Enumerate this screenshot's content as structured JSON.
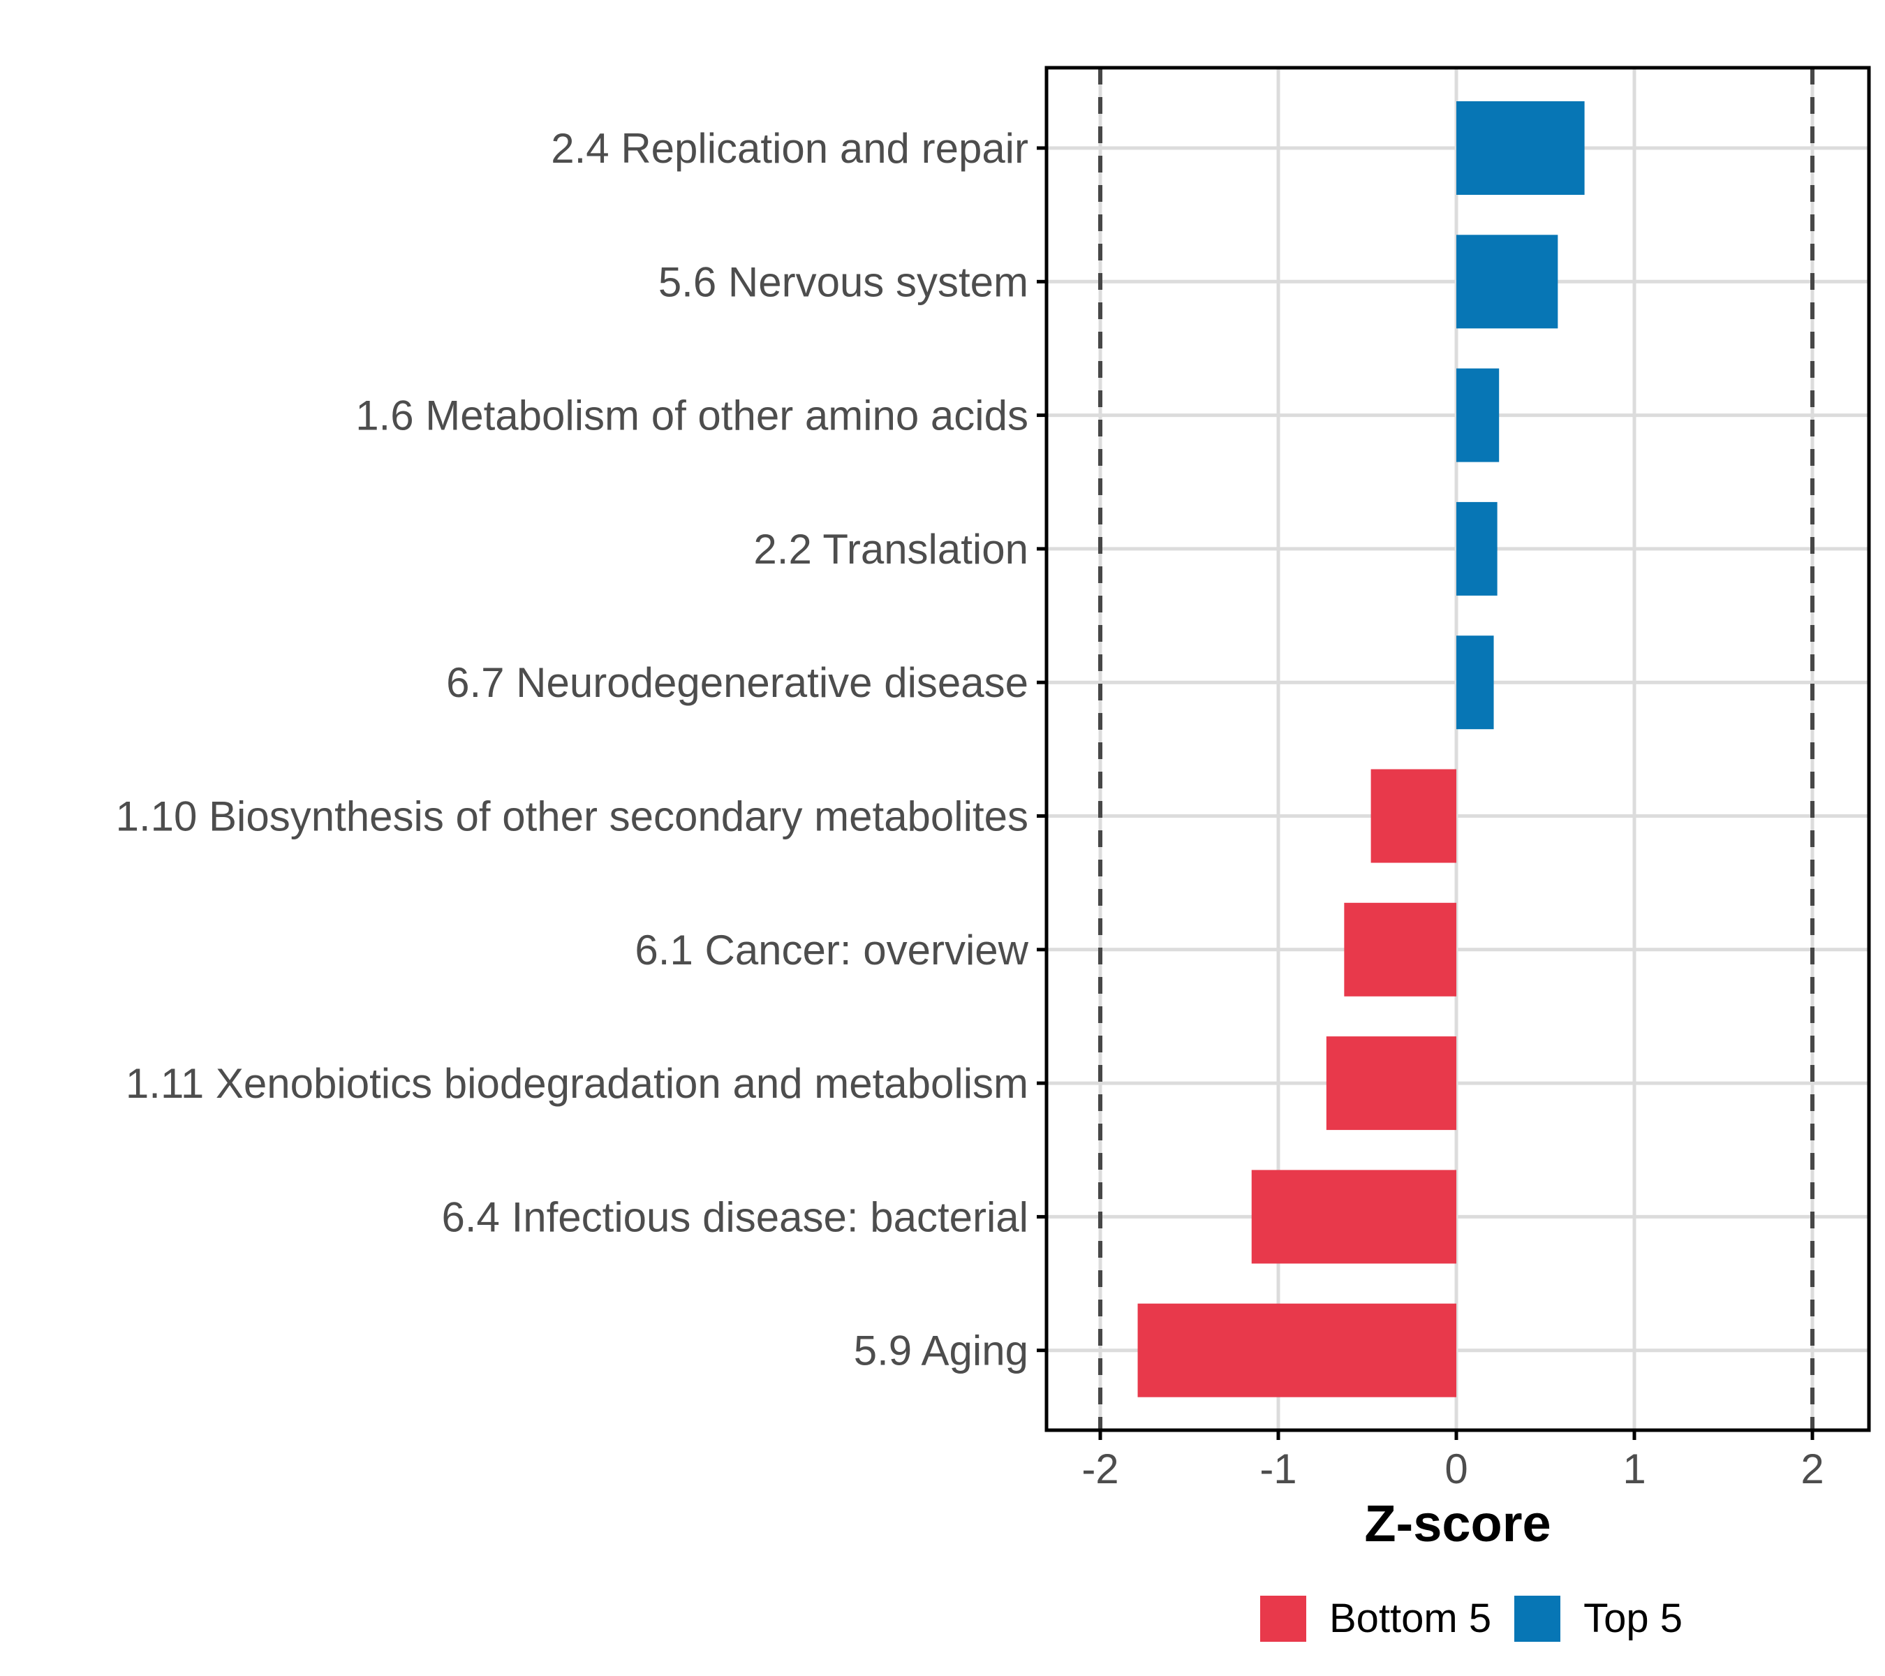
{
  "chart_data": {
    "type": "bar",
    "orientation": "horizontal",
    "title": "",
    "xlabel": "Z-score",
    "ylabel": "",
    "x_tick_labels": [
      "-2",
      "-1",
      "0",
      "1",
      "2"
    ],
    "x_tick_values": [
      -2,
      -1,
      0,
      1,
      2
    ],
    "xlim": [
      -2.3,
      2.32
    ],
    "reference_lines_x": [
      -2,
      2
    ],
    "grid": "major-only",
    "legend_position": "bottom",
    "legend": [
      {
        "label": "Bottom 5",
        "color": "#E8394B"
      },
      {
        "label": "Top 5",
        "color": "#0776B5"
      }
    ],
    "group_colors": {
      "Bottom 5": "#E8394B",
      "Top 5": "#0776B5"
    },
    "bars": [
      {
        "category": "2.4 Replication and repair",
        "value": 0.72,
        "group": "Top 5"
      },
      {
        "category": "5.6 Nervous system",
        "value": 0.57,
        "group": "Top 5"
      },
      {
        "category": "1.6 Metabolism of other amino acids",
        "value": 0.24,
        "group": "Top 5"
      },
      {
        "category": "2.2 Translation",
        "value": 0.23,
        "group": "Top 5"
      },
      {
        "category": "6.7 Neurodegenerative disease",
        "value": 0.21,
        "group": "Top 5"
      },
      {
        "category": "1.10 Biosynthesis of other secondary metabolites",
        "value": -0.48,
        "group": "Bottom 5"
      },
      {
        "category": "6.1 Cancer: overview",
        "value": -0.63,
        "group": "Bottom 5"
      },
      {
        "category": "1.11 Xenobiotics biodegradation and metabolism",
        "value": -0.73,
        "group": "Bottom 5"
      },
      {
        "category": "6.4 Infectious disease: bacterial",
        "value": -1.15,
        "group": "Bottom 5"
      },
      {
        "category": "5.9 Aging",
        "value": -1.79,
        "group": "Bottom 5"
      }
    ],
    "style_colors": {
      "panel_border": "#000000",
      "grid_line": "#DCDCDC",
      "reference_line": "#474747",
      "axis_text": "#4D4D4D",
      "axis_tick": "#000000"
    }
  }
}
